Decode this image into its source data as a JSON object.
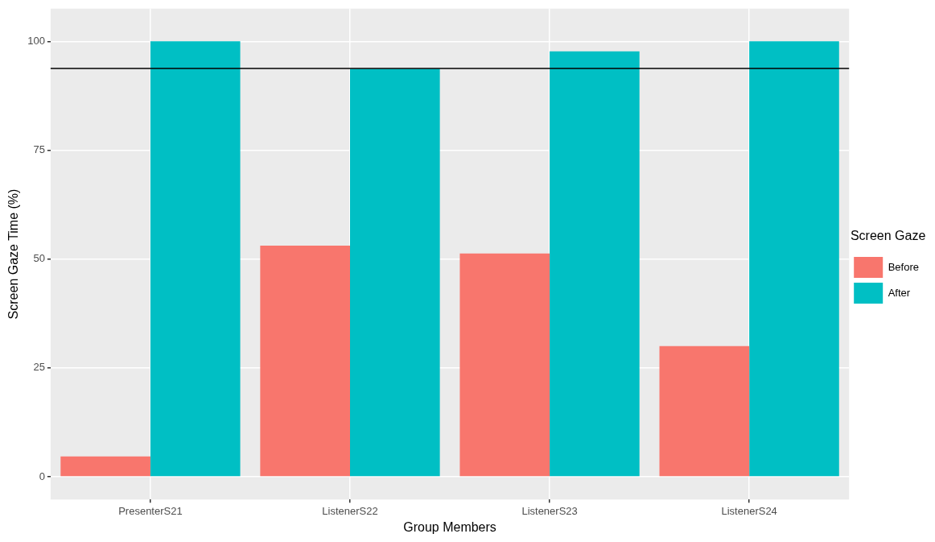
{
  "chart_data": {
    "type": "bar",
    "xlabel": "Group Members",
    "ylabel": "Screen Gaze Time (%)",
    "legend_title": "Screen Gaze",
    "categories": [
      "PresenterS21",
      "ListenerS22",
      "ListenerS23",
      "ListenerS24"
    ],
    "series": [
      {
        "name": "Before",
        "color": "#f8766d",
        "values": [
          4.7,
          53.1,
          51.3,
          30.0
        ]
      },
      {
        "name": "After",
        "color": "#00bfc4",
        "values": [
          100,
          93.7,
          97.7,
          100
        ]
      }
    ],
    "ylim": [
      -5.2,
      107.5
    ],
    "yticks": [
      0,
      25,
      50,
      75,
      100
    ],
    "grid": true,
    "legend": "right",
    "ref_lines": [
      {
        "axis": "y",
        "value": 93.8,
        "color": "#000000"
      }
    ]
  }
}
